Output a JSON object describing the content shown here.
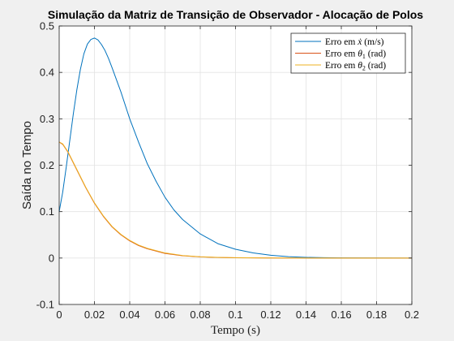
{
  "chart_data": {
    "type": "line",
    "title": "Simulação da Matriz de Transição de Observador - Alocação de Polos",
    "xlabel": "Tempo (s)",
    "ylabel": "Saída no Tempo",
    "xlim": [
      0,
      0.2
    ],
    "ylim": [
      -0.1,
      0.5
    ],
    "x_ticks": [
      "0",
      "0.02",
      "0.04",
      "0.06",
      "0.08",
      "0.1",
      "0.12",
      "0.14",
      "0.16",
      "0.18",
      "0.2"
    ],
    "y_ticks": [
      "-0.1",
      "0",
      "0.1",
      "0.2",
      "0.3",
      "0.4",
      "0.5"
    ],
    "grid": true,
    "legend_position": "top-right",
    "series": [
      {
        "name": "Erro em ẋ (m/s)",
        "name_parts": [
          "Erro em ",
          "ẋ",
          " (m/s)"
        ],
        "color": "#0072bd",
        "x": [
          0,
          0.002,
          0.004,
          0.006,
          0.008,
          0.01,
          0.012,
          0.014,
          0.016,
          0.018,
          0.02,
          0.022,
          0.024,
          0.026,
          0.028,
          0.03,
          0.035,
          0.04,
          0.045,
          0.05,
          0.055,
          0.06,
          0.065,
          0.07,
          0.08,
          0.09,
          0.1,
          0.11,
          0.12,
          0.13,
          0.14,
          0.15,
          0.16,
          0.18,
          0.2
        ],
        "y": [
          0.1,
          0.142,
          0.196,
          0.253,
          0.31,
          0.362,
          0.406,
          0.44,
          0.461,
          0.471,
          0.474,
          0.47,
          0.46,
          0.447,
          0.43,
          0.41,
          0.358,
          0.3,
          0.25,
          0.203,
          0.165,
          0.131,
          0.104,
          0.083,
          0.052,
          0.031,
          0.019,
          0.011,
          0.006,
          0.003,
          0.0015,
          0.0008,
          0.0003,
          0.0001,
          0
        ]
      },
      {
        "name": "Erro em θ1 (rad)",
        "name_parts": [
          "Erro em ",
          "θ",
          "1",
          " (rad)"
        ],
        "color": "#d95319",
        "x": [
          0,
          0.002,
          0.005,
          0.01,
          0.015,
          0.02,
          0.025,
          0.03,
          0.035,
          0.04,
          0.045,
          0.05,
          0.06,
          0.07,
          0.08,
          0.09,
          0.1,
          0.12,
          0.14,
          0.16,
          0.18,
          0.2
        ],
        "y": [
          0.25,
          0.245,
          0.228,
          0.19,
          0.152,
          0.118,
          0.09,
          0.067,
          0.05,
          0.037,
          0.027,
          0.02,
          0.01,
          0.005,
          0.0025,
          0.0012,
          0.0006,
          0.0001,
          0,
          0,
          0,
          0
        ]
      },
      {
        "name": "Erro em θ2 (rad)",
        "name_parts": [
          "Erro em ",
          "θ",
          "2",
          " (rad)"
        ],
        "color": "#edb120",
        "x": [
          0,
          0.002,
          0.005,
          0.01,
          0.015,
          0.02,
          0.025,
          0.03,
          0.035,
          0.04,
          0.045,
          0.05,
          0.06,
          0.07,
          0.08,
          0.09,
          0.1,
          0.12,
          0.14,
          0.16,
          0.18,
          0.2
        ],
        "y": [
          0.25,
          0.246,
          0.229,
          0.191,
          0.153,
          0.119,
          0.091,
          0.068,
          0.051,
          0.038,
          0.028,
          0.021,
          0.011,
          0.0055,
          0.0028,
          0.0014,
          0.0007,
          0.0001,
          0,
          0,
          0,
          0
        ]
      }
    ]
  }
}
